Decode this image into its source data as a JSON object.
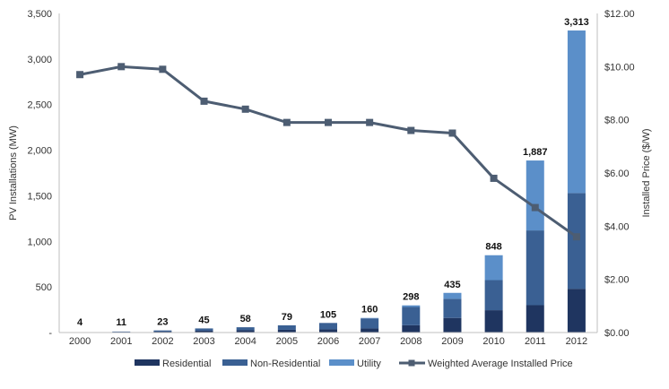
{
  "chart_data": {
    "type": "bar",
    "categories": [
      "2000",
      "2001",
      "2002",
      "2003",
      "2004",
      "2005",
      "2006",
      "2007",
      "2008",
      "2009",
      "2010",
      "2011",
      "2012"
    ],
    "stack_series": [
      {
        "name": "Residential",
        "color": "#1f3560",
        "values": [
          2,
          5,
          10,
          20,
          25,
          30,
          35,
          45,
          80,
          160,
          245,
          300,
          480
        ]
      },
      {
        "name": "Non-Residential",
        "color": "#3a6093",
        "values": [
          2,
          6,
          13,
          25,
          33,
          49,
          70,
          110,
          200,
          210,
          330,
          820,
          1050
        ]
      },
      {
        "name": "Utility",
        "color": "#5b8fc9",
        "values": [
          0,
          0,
          0,
          0,
          0,
          0,
          0,
          5,
          18,
          65,
          273,
          767,
          1783
        ]
      }
    ],
    "totals": [
      4,
      11,
      23,
      45,
      58,
      79,
      105,
      160,
      298,
      435,
      848,
      1887,
      3313
    ],
    "total_labels": [
      "4",
      "11",
      "23",
      "45",
      "58",
      "79",
      "105",
      "160",
      "298",
      "435",
      "848",
      "1,887",
      "3,313"
    ],
    "line_series": {
      "name": "Weighted Average Installed Price",
      "color": "#4d5d72",
      "axis": "right",
      "values": [
        9.7,
        10.0,
        9.9,
        8.7,
        8.4,
        7.9,
        7.9,
        7.9,
        7.6,
        7.5,
        5.8,
        4.7,
        3.6
      ]
    },
    "ylabel": "PV Installations (MW)",
    "y2label": "Installed Price ($/W)",
    "ylim": [
      0,
      3500
    ],
    "y2lim": [
      0,
      12
    ],
    "y_ticks": [
      0,
      500,
      1000,
      1500,
      2000,
      2500,
      3000,
      3500
    ],
    "y_tick_labels": [
      "-",
      "500",
      "1,000",
      "1,500",
      "2,000",
      "2,500",
      "3,000",
      "3,500"
    ],
    "y2_ticks": [
      0,
      2,
      4,
      6,
      8,
      10,
      12
    ],
    "y2_tick_labels": [
      "$0.00",
      "$2.00",
      "$4.00",
      "$6.00",
      "$8.00",
      "$10.00",
      "$12.00"
    ],
    "legend_position": "bottom",
    "grid": false
  }
}
